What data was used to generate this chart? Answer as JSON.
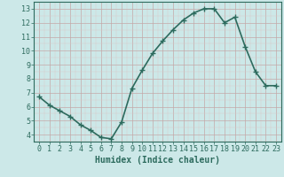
{
  "x": [
    0,
    1,
    2,
    3,
    4,
    5,
    6,
    7,
    8,
    9,
    10,
    11,
    12,
    13,
    14,
    15,
    16,
    17,
    18,
    19,
    20,
    21,
    22,
    23
  ],
  "y": [
    6.7,
    6.1,
    5.7,
    5.3,
    4.7,
    4.3,
    3.8,
    3.7,
    4.9,
    7.3,
    8.6,
    9.8,
    10.7,
    11.5,
    12.2,
    12.7,
    13.0,
    13.0,
    12.0,
    12.4,
    10.3,
    8.5,
    7.5,
    7.5
  ],
  "line_color": "#2d6b5e",
  "marker": "+",
  "marker_size": 4,
  "linewidth": 1.2,
  "bg_color": "#cce8e8",
  "grid_color_major": "#c4a8a8",
  "grid_color_minor": "#dcc8c8",
  "xlabel": "Humidex (Indice chaleur)",
  "xlim": [
    -0.5,
    23.5
  ],
  "ylim": [
    3.5,
    13.5
  ],
  "yticks": [
    4,
    5,
    6,
    7,
    8,
    9,
    10,
    11,
    12,
    13
  ],
  "xticks": [
    0,
    1,
    2,
    3,
    4,
    5,
    6,
    7,
    8,
    9,
    10,
    11,
    12,
    13,
    14,
    15,
    16,
    17,
    18,
    19,
    20,
    21,
    22,
    23
  ],
  "tick_fontsize": 6,
  "label_fontsize": 7
}
